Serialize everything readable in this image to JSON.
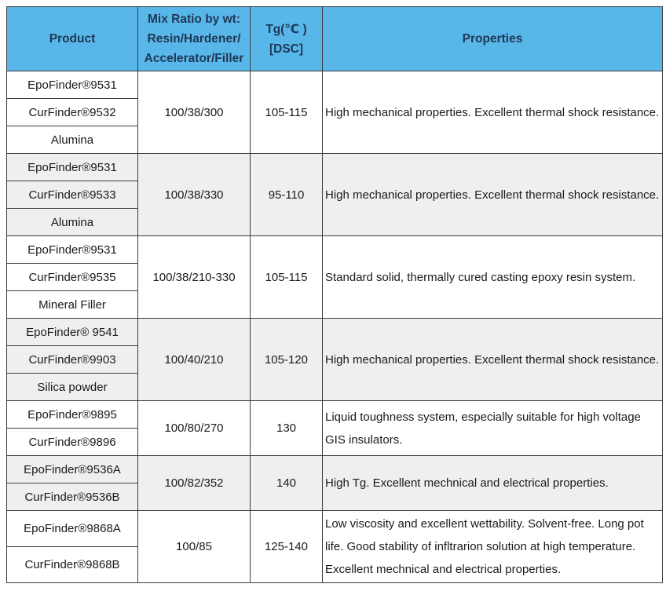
{
  "table": {
    "header": {
      "product": "Product",
      "mix_lines": [
        "Mix Ratio by wt:",
        "Resin/Hardener/",
        "Accelerator/Filler"
      ],
      "tg_lines": [
        "Tg(℃ )",
        "[DSC]"
      ],
      "properties": "Properties"
    },
    "groups": [
      {
        "products": [
          "EpoFinder®9531",
          "CurFinder®9532",
          "Alumina"
        ],
        "mix_ratio": "100/38/300",
        "tg": "105-115",
        "properties": "High mechanical properties. Excellent thermal shock resistance.",
        "shaded": false
      },
      {
        "products": [
          "EpoFinder®9531",
          "CurFinder®9533",
          "Alumina"
        ],
        "mix_ratio": "100/38/330",
        "tg": "95-110",
        "properties": "High mechanical properties. Excellent thermal shock resistance.",
        "shaded": true
      },
      {
        "products": [
          "EpoFinder®9531",
          "CurFinder®9535",
          "Mineral Filler"
        ],
        "mix_ratio": "100/38/210-330",
        "tg": "105-115",
        "properties": "Standard solid, thermally cured casting epoxy resin system.",
        "shaded": false
      },
      {
        "products": [
          "EpoFinder® 9541",
          "CurFinder®9903",
          "Silica powder"
        ],
        "mix_ratio": "100/40/210",
        "tg": "105-120",
        "properties": "High mechanical properties. Excellent thermal shock resistance.",
        "shaded": true
      },
      {
        "products": [
          "EpoFinder®9895",
          "CurFinder®9896"
        ],
        "mix_ratio": "100/80/270",
        "tg": "130",
        "properties": "Liquid toughness system, especially suitable for high voltage GIS insulators.",
        "shaded": false
      },
      {
        "products": [
          "EpoFinder®9536A",
          "CurFinder®9536B"
        ],
        "mix_ratio": "100/82/352",
        "tg": "140",
        "properties": "High Tg. Excellent mechnical and electrical properties.",
        "shaded": true
      },
      {
        "products": [
          "EpoFinder®9868A",
          "CurFinder®9868B"
        ],
        "mix_ratio": "100/85",
        "tg": "125-140",
        "properties": "Low viscosity and excellent wettability. Solvent-free. Long pot life. Good stability of infltrarion solution at high temperature. Excellent mechnical and electrical properties.",
        "shaded": false
      }
    ],
    "colors": {
      "header_bg": "#58B7E8",
      "header_text": "#1F3756",
      "shaded_row_bg": "#EFEFEF",
      "border": "#3B3B3B",
      "body_text": "#1A1A1A"
    }
  }
}
